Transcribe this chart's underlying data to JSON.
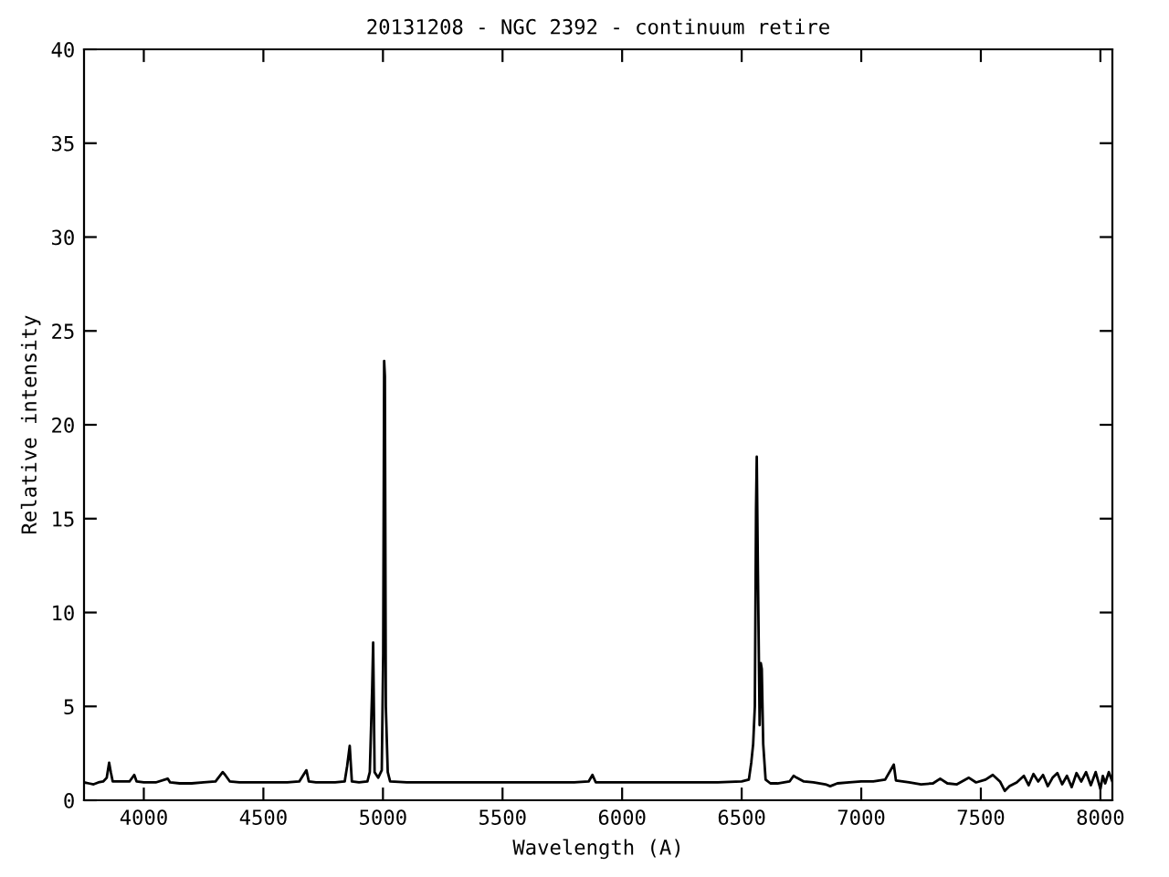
{
  "chart_data": {
    "type": "line",
    "title": "20131208 - NGC 2392 - continuum retire",
    "xlabel": "Wavelength (A)",
    "ylabel": "Relative intensity",
    "xlim": [
      3750,
      8050
    ],
    "xticks": [
      4000,
      4500,
      5000,
      5500,
      6000,
      6500,
      7000,
      7500,
      8000
    ],
    "ylim": [
      0,
      40
    ],
    "yticks": [
      0,
      5,
      10,
      15,
      20,
      25,
      30,
      35,
      40
    ],
    "grid": false,
    "legend": false,
    "marker": "none",
    "line_style": "solid",
    "series": [
      {
        "color": "#000000",
        "x": [
          3750,
          3770,
          3790,
          3810,
          3830,
          3845,
          3855,
          3862,
          3870,
          3900,
          3940,
          3960,
          3970,
          4000,
          4050,
          4100,
          4110,
          4150,
          4200,
          4250,
          4300,
          4330,
          4340,
          4360,
          4400,
          4450,
          4500,
          4550,
          4600,
          4650,
          4680,
          4690,
          4720,
          4760,
          4800,
          4840,
          4850,
          4861,
          4870,
          4900,
          4935,
          4945,
          4955,
          4959,
          4965,
          4980,
          4995,
          5001,
          5005,
          5008,
          5012,
          5020,
          5030,
          5100,
          5200,
          5300,
          5400,
          5500,
          5600,
          5700,
          5800,
          5860,
          5876,
          5890,
          6000,
          6100,
          6200,
          6300,
          6400,
          6500,
          6530,
          6540,
          6548,
          6555,
          6560,
          6563,
          6568,
          6575,
          6580,
          6584,
          6590,
          6600,
          6620,
          6650,
          6700,
          6717,
          6730,
          6760,
          6800,
          6850,
          6870,
          6900,
          6950,
          7000,
          7050,
          7100,
          7136,
          7145,
          7200,
          7250,
          7300,
          7330,
          7360,
          7400,
          7450,
          7480,
          7520,
          7550,
          7580,
          7600,
          7620,
          7650,
          7680,
          7700,
          7720,
          7740,
          7760,
          7780,
          7800,
          7820,
          7840,
          7860,
          7880,
          7900,
          7920,
          7940,
          7960,
          7980,
          8000,
          8010,
          8020,
          8035,
          8050
        ],
        "values": [
          0.95,
          0.9,
          0.85,
          0.95,
          1.0,
          1.2,
          2.0,
          1.5,
          1.0,
          1.0,
          1.0,
          1.35,
          1.0,
          0.95,
          0.95,
          1.15,
          0.95,
          0.9,
          0.9,
          0.95,
          1.0,
          1.5,
          1.35,
          1.0,
          0.95,
          0.95,
          0.95,
          0.95,
          0.95,
          1.0,
          1.6,
          1.0,
          0.95,
          0.95,
          0.95,
          1.0,
          1.8,
          2.9,
          1.0,
          0.95,
          1.0,
          1.5,
          6.0,
          8.4,
          1.5,
          1.2,
          1.6,
          7.8,
          23.4,
          22.6,
          5.0,
          1.5,
          1.0,
          0.95,
          0.95,
          0.95,
          0.95,
          0.95,
          0.95,
          0.95,
          0.95,
          1.0,
          1.35,
          0.95,
          0.95,
          0.95,
          0.95,
          0.95,
          0.95,
          1.0,
          1.1,
          2.0,
          3.0,
          5.0,
          15.5,
          18.3,
          12.0,
          4.0,
          7.3,
          7.0,
          3.0,
          1.1,
          0.9,
          0.9,
          1.0,
          1.3,
          1.2,
          1.0,
          0.95,
          0.85,
          0.75,
          0.9,
          0.95,
          1.0,
          1.0,
          1.1,
          1.9,
          1.05,
          0.95,
          0.85,
          0.9,
          1.15,
          0.9,
          0.85,
          1.2,
          0.95,
          1.1,
          1.35,
          1.0,
          0.5,
          0.75,
          0.95,
          1.3,
          0.8,
          1.4,
          1.0,
          1.35,
          0.75,
          1.2,
          1.45,
          0.85,
          1.3,
          0.7,
          1.45,
          1.0,
          1.5,
          0.8,
          1.5,
          0.6,
          1.3,
          0.9,
          1.5,
          1.0
        ]
      }
    ]
  }
}
